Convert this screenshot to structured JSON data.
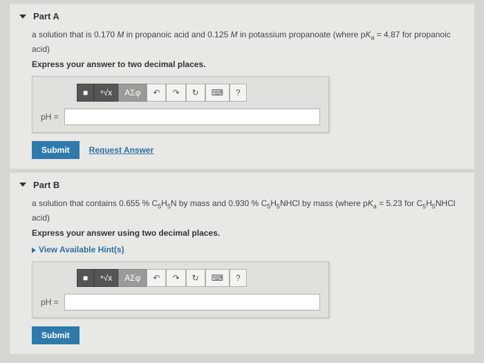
{
  "partA": {
    "title": "Part A",
    "q1": "a solution that is 0.170 ",
    "m1": "M",
    "q2": " in propanoic acid and 0.125 ",
    "m2": "M",
    "q3": " in potassium propanoate (where p",
    "ka": "K",
    "ka_sub": "a",
    "q4": " = 4.87 for propanoic acid)",
    "express": "Express your answer to two decimal places.",
    "label": "pH =",
    "submit": "Submit",
    "request": "Request Answer"
  },
  "partB": {
    "title": "Part B",
    "q1": "a solution that contains 0.655 % C",
    "f1s": "5",
    "q1b": "H",
    "f1s2": "5",
    "q1c": "N by mass and 0.930 % C",
    "f2s": "5",
    "q1d": "H",
    "f2s2": "5",
    "q1e": "NHCl by mass (where p",
    "ka": "K",
    "ka_sub": "a",
    "q4": " = 5.23 for C",
    "f3s": "5",
    "q4b": "H",
    "f3s2": "5",
    "q4c": "NHCl acid)",
    "express": "Express your answer using two decimal places.",
    "hints": "View Available Hint(s)",
    "label": "pH =",
    "submit": "Submit"
  },
  "toolbar": {
    "templates": "■",
    "radical": "ⁿ√x",
    "greek": "ΑΣφ",
    "undo": "↶",
    "redo": "↷",
    "reset": "↻",
    "keyboard": "⌨",
    "help": "?"
  }
}
